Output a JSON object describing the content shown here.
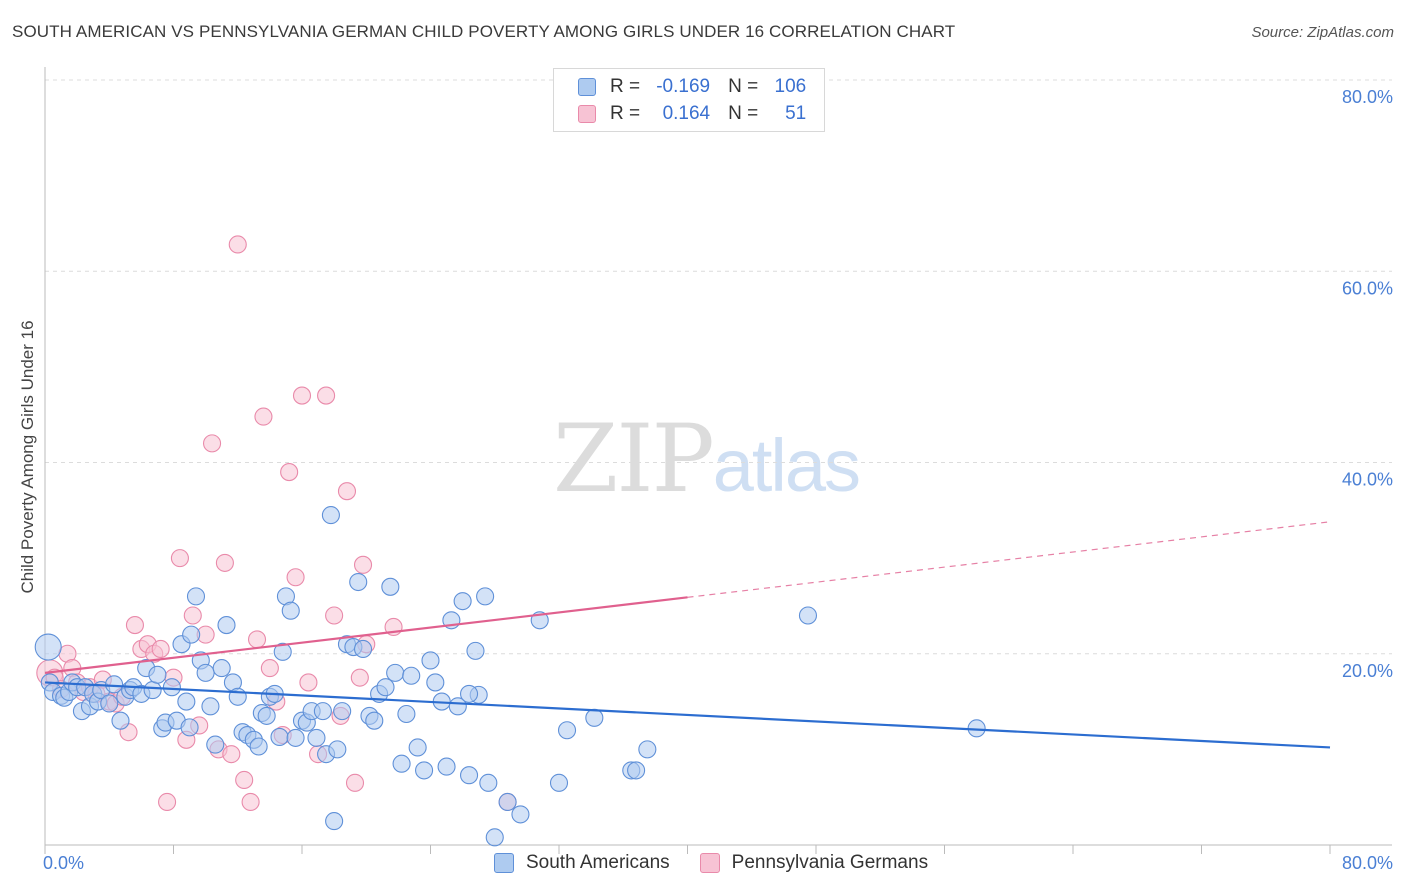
{
  "title": "SOUTH AMERICAN VS PENNSYLVANIA GERMAN CHILD POVERTY AMONG GIRLS UNDER 16 CORRELATION CHART",
  "source": "Source: ZipAtlas.com",
  "watermark": {
    "zip": "ZIP",
    "atlas": "atlas"
  },
  "legend_top": [
    {
      "r_label": "R =",
      "r_value": "-0.169",
      "n_label": "N =",
      "n_value": "106"
    },
    {
      "r_label": "R =",
      "r_value": "0.164",
      "n_label": "N =",
      "n_value": "51"
    }
  ],
  "colors": {
    "blue_fill": "#aecbf0",
    "blue_stroke": "#5f90d8",
    "blue_line": "#2c6dd0",
    "pink_fill": "#f7c3d4",
    "pink_stroke": "#e98aaa",
    "pink_line": "#e0608e",
    "tick": "#4a7fd4"
  },
  "chart_data": {
    "type": "scatter",
    "title": "SOUTH AMERICAN VS PENNSYLVANIA GERMAN CHILD POVERTY AMONG GIRLS UNDER 16 CORRELATION CHART",
    "xlabel": "",
    "ylabel": "Child Poverty Among Girls Under 16",
    "xlim": [
      0,
      80
    ],
    "ylim": [
      0,
      80
    ],
    "x_tick_labels": [
      "0.0%",
      "80.0%"
    ],
    "y_ticks": [
      20,
      40,
      60,
      80
    ],
    "y_tick_labels": [
      "20.0%",
      "40.0%",
      "60.0%",
      "80.0%"
    ],
    "grid": true,
    "legend_position": "bottom-center",
    "series": [
      {
        "name": "South Americans",
        "r": -0.169,
        "n": 106,
        "trend": {
          "x0": 0,
          "y0": 17.0,
          "x1": 80,
          "y1": 10.2,
          "solid_to": 80
        },
        "points": [
          [
            0.2,
            20.7
          ],
          [
            0.3,
            17.0
          ],
          [
            0.5,
            16.0
          ],
          [
            1.0,
            15.6
          ],
          [
            1.2,
            15.4
          ],
          [
            1.5,
            16.0
          ],
          [
            1.7,
            17.0
          ],
          [
            2.0,
            16.5
          ],
          [
            2.3,
            14.0
          ],
          [
            2.5,
            16.5
          ],
          [
            2.8,
            14.5
          ],
          [
            3.0,
            15.8
          ],
          [
            3.3,
            15.0
          ],
          [
            3.5,
            16.2
          ],
          [
            4.0,
            14.8
          ],
          [
            4.3,
            16.8
          ],
          [
            4.7,
            13.0
          ],
          [
            5.0,
            15.5
          ],
          [
            5.3,
            16.2
          ],
          [
            5.5,
            16.5
          ],
          [
            6.0,
            15.8
          ],
          [
            6.3,
            18.5
          ],
          [
            6.7,
            16.2
          ],
          [
            7.0,
            17.8
          ],
          [
            7.3,
            12.2
          ],
          [
            7.5,
            12.8
          ],
          [
            7.9,
            16.5
          ],
          [
            8.2,
            13.0
          ],
          [
            8.5,
            21.0
          ],
          [
            8.8,
            15.0
          ],
          [
            9.1,
            22.0
          ],
          [
            9.4,
            26.0
          ],
          [
            9.7,
            19.3
          ],
          [
            10.0,
            18.0
          ],
          [
            10.3,
            14.5
          ],
          [
            10.6,
            10.5
          ],
          [
            11.0,
            18.5
          ],
          [
            11.3,
            23.0
          ],
          [
            11.7,
            17.0
          ],
          [
            12.0,
            15.5
          ],
          [
            12.3,
            11.8
          ],
          [
            12.6,
            11.5
          ],
          [
            13.0,
            11.0
          ],
          [
            13.3,
            10.3
          ],
          [
            13.5,
            13.8
          ],
          [
            13.8,
            13.5
          ],
          [
            14.0,
            15.5
          ],
          [
            14.3,
            15.8
          ],
          [
            14.6,
            11.3
          ],
          [
            14.8,
            20.2
          ],
          [
            15.0,
            26.0
          ],
          [
            15.3,
            24.5
          ],
          [
            15.6,
            11.2
          ],
          [
            16.0,
            13.0
          ],
          [
            16.3,
            12.8
          ],
          [
            16.6,
            14.0
          ],
          [
            16.9,
            11.2
          ],
          [
            17.3,
            14.0
          ],
          [
            17.5,
            9.5
          ],
          [
            17.8,
            34.5
          ],
          [
            18.2,
            10.0
          ],
          [
            18.5,
            14.0
          ],
          [
            18.8,
            21.0
          ],
          [
            19.2,
            20.7
          ],
          [
            19.5,
            27.5
          ],
          [
            19.8,
            20.5
          ],
          [
            20.2,
            13.5
          ],
          [
            20.5,
            13.0
          ],
          [
            20.8,
            15.8
          ],
          [
            21.2,
            16.5
          ],
          [
            21.5,
            27.0
          ],
          [
            21.8,
            18.0
          ],
          [
            22.2,
            8.5
          ],
          [
            22.5,
            13.7
          ],
          [
            22.8,
            17.7
          ],
          [
            23.2,
            10.2
          ],
          [
            23.6,
            7.8
          ],
          [
            24.0,
            19.3
          ],
          [
            24.3,
            17.0
          ],
          [
            24.7,
            15.0
          ],
          [
            25.0,
            8.2
          ],
          [
            25.3,
            23.5
          ],
          [
            25.7,
            14.5
          ],
          [
            26.0,
            25.5
          ],
          [
            26.4,
            7.3
          ],
          [
            26.8,
            20.3
          ],
          [
            27.0,
            15.7
          ],
          [
            27.4,
            26.0
          ],
          [
            27.6,
            6.5
          ],
          [
            28.0,
            0.8
          ],
          [
            28.8,
            4.5
          ],
          [
            29.6,
            3.2
          ],
          [
            30.8,
            23.5
          ],
          [
            32.0,
            6.5
          ],
          [
            32.5,
            12.0
          ],
          [
            34.2,
            13.3
          ],
          [
            36.5,
            7.8
          ],
          [
            36.8,
            7.8
          ],
          [
            37.5,
            10.0
          ],
          [
            47.5,
            24.0
          ],
          [
            58.0,
            12.2
          ],
          [
            18.0,
            2.5
          ],
          [
            26.4,
            15.8
          ],
          [
            9.0,
            12.3
          ]
        ]
      },
      {
        "name": "Pennsylvania Germans",
        "r": 0.164,
        "n": 51,
        "trend": {
          "x0": 0,
          "y0": 18.0,
          "x1": 80,
          "y1": 33.8,
          "solid_to": 40
        },
        "points": [
          [
            0.3,
            18.0
          ],
          [
            0.6,
            17.5
          ],
          [
            1.0,
            16.3
          ],
          [
            1.4,
            20.0
          ],
          [
            1.7,
            18.5
          ],
          [
            2.0,
            17.0
          ],
          [
            2.4,
            16.0
          ],
          [
            2.8,
            16.5
          ],
          [
            3.2,
            15.8
          ],
          [
            3.6,
            17.3
          ],
          [
            4.0,
            15.0
          ],
          [
            4.4,
            14.8
          ],
          [
            4.8,
            15.5
          ],
          [
            5.2,
            11.8
          ],
          [
            5.6,
            23.0
          ],
          [
            6.0,
            20.5
          ],
          [
            6.4,
            21.0
          ],
          [
            6.8,
            20.0
          ],
          [
            7.2,
            20.5
          ],
          [
            7.6,
            4.5
          ],
          [
            8.0,
            17.5
          ],
          [
            8.4,
            30.0
          ],
          [
            8.8,
            11.0
          ],
          [
            9.2,
            24.0
          ],
          [
            9.6,
            12.5
          ],
          [
            10.0,
            22.0
          ],
          [
            10.4,
            42.0
          ],
          [
            10.8,
            10.0
          ],
          [
            11.2,
            29.5
          ],
          [
            11.6,
            9.5
          ],
          [
            12.0,
            62.8
          ],
          [
            12.4,
            6.8
          ],
          [
            12.8,
            4.5
          ],
          [
            13.2,
            21.5
          ],
          [
            13.6,
            44.8
          ],
          [
            14.0,
            18.5
          ],
          [
            14.4,
            15.0
          ],
          [
            14.8,
            11.5
          ],
          [
            15.2,
            39.0
          ],
          [
            15.6,
            28.0
          ],
          [
            16.0,
            47.0
          ],
          [
            16.4,
            17.0
          ],
          [
            17.0,
            9.5
          ],
          [
            17.5,
            47.0
          ],
          [
            18.0,
            24.0
          ],
          [
            18.4,
            13.5
          ],
          [
            18.8,
            37.0
          ],
          [
            19.3,
            6.5
          ],
          [
            19.6,
            17.5
          ],
          [
            19.8,
            29.3
          ],
          [
            20.0,
            21.0
          ],
          [
            21.7,
            22.8
          ],
          [
            28.8,
            4.5
          ]
        ]
      }
    ]
  }
}
